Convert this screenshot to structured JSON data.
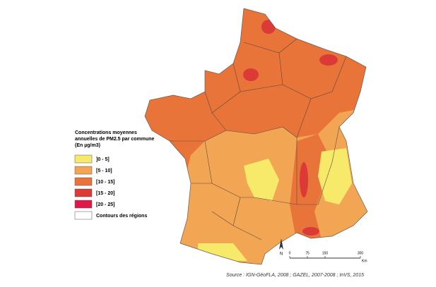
{
  "legend": {
    "title": [
      "Concentrations moyennes",
      "annuelles de PM2.5 par commune",
      "(En µg/m3)"
    ],
    "items": [
      {
        "label": "]0 - 5]",
        "color": "#f7e96a"
      },
      {
        "label": "[5 - 10]",
        "color": "#f2a653"
      },
      {
        "label": "[10 - 15]",
        "color": "#e8743a"
      },
      {
        "label": "[15 - 20]",
        "color": "#dc3a37"
      },
      {
        "label": "[20 - 25]",
        "color": "#e0184a"
      },
      {
        "label": "Contours des régions",
        "color": "#ffffff"
      }
    ]
  },
  "north": "N",
  "scale": {
    "ticks": [
      0,
      75,
      150,
      300
    ],
    "unit": "Km"
  },
  "source": "Source : IGN-GéoFLA, 2008 ; GAZEL, 2007-2008 ; InVS, 2015"
}
